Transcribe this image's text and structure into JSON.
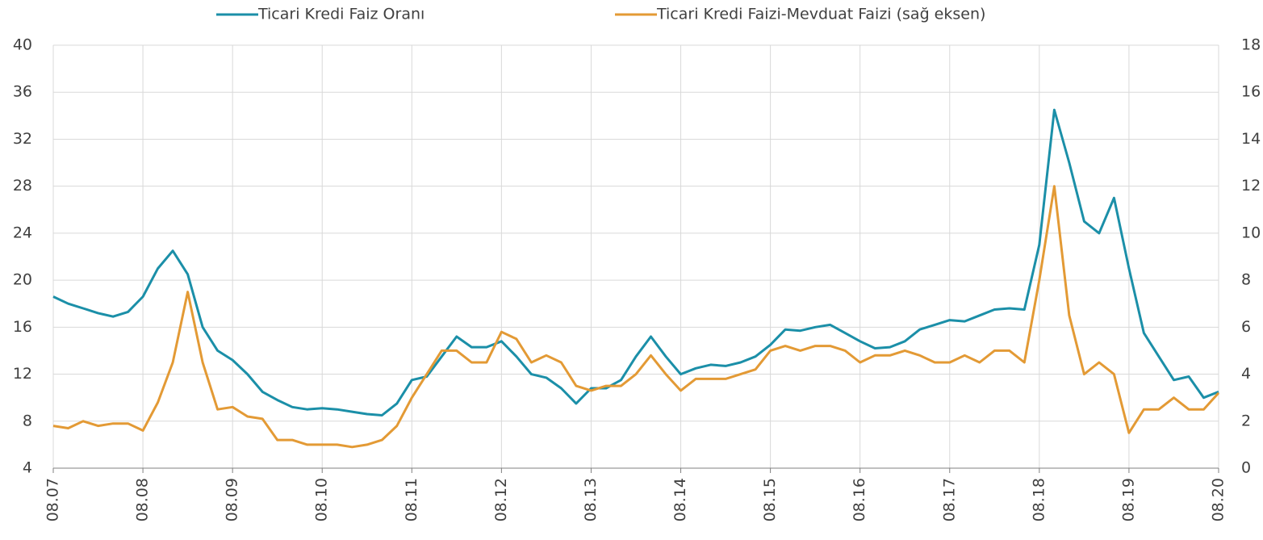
{
  "chart_data": {
    "type": "line",
    "categories": [
      "08.07",
      null,
      null,
      null,
      null,
      null,
      "08.08",
      null,
      null,
      null,
      null,
      null,
      "08.09",
      null,
      null,
      null,
      null,
      null,
      "08.10",
      null,
      null,
      null,
      null,
      null,
      "08.11",
      null,
      null,
      null,
      null,
      null,
      "08.12",
      null,
      null,
      null,
      null,
      null,
      "08.13",
      null,
      null,
      null,
      null,
      null,
      "08.14",
      null,
      null,
      null,
      null,
      null,
      "08.15",
      null,
      null,
      null,
      null,
      null,
      "08.16",
      null,
      null,
      null,
      null,
      null,
      "08.17",
      null,
      null,
      null,
      null,
      null,
      "08.18",
      null,
      null,
      null,
      null,
      null,
      "08.19",
      null,
      null,
      null,
      null,
      null,
      "08.20"
    ],
    "series": [
      {
        "name": "Ticari Kredi Faiz Oranı",
        "color": "#1b8fa8",
        "axis": "y",
        "values": [
          18.6,
          18.0,
          17.6,
          17.2,
          16.9,
          17.3,
          18.6,
          21.0,
          22.5,
          20.5,
          16.0,
          14.0,
          13.2,
          12.0,
          10.5,
          9.8,
          9.2,
          9.0,
          9.1,
          9.0,
          8.8,
          8.6,
          8.5,
          9.5,
          11.5,
          11.8,
          13.5,
          15.2,
          14.3,
          14.3,
          14.8,
          13.5,
          12.0,
          11.7,
          10.8,
          9.5,
          10.8,
          10.8,
          11.5,
          13.5,
          15.2,
          13.5,
          12.0,
          12.5,
          12.8,
          12.7,
          13.0,
          13.5,
          14.5,
          15.8,
          15.7,
          16.0,
          16.2,
          15.5,
          14.8,
          14.2,
          14.3,
          14.8,
          15.8,
          16.2,
          16.6,
          16.5,
          17.0,
          17.5,
          17.6,
          17.5,
          23.0,
          34.5,
          30.0,
          25.0,
          24.0,
          27.0,
          21.0,
          15.5,
          13.5,
          11.5,
          11.8,
          10.0,
          10.5
        ]
      },
      {
        "name": "Ticari Kredi Faizi-Mevduat Faizi (sağ eksen)",
        "color": "#e39a35",
        "axis": "y2",
        "values": [
          1.8,
          1.7,
          2.0,
          1.8,
          1.9,
          1.9,
          1.6,
          2.8,
          4.5,
          7.5,
          4.5,
          2.5,
          2.6,
          2.2,
          2.1,
          1.2,
          1.2,
          1.0,
          1.0,
          1.0,
          0.9,
          1.0,
          1.2,
          1.8,
          3.0,
          4.0,
          5.0,
          5.0,
          4.5,
          4.5,
          5.8,
          5.5,
          4.5,
          4.8,
          4.5,
          3.5,
          3.3,
          3.5,
          3.5,
          4.0,
          4.8,
          4.0,
          3.3,
          3.8,
          3.8,
          3.8,
          4.0,
          4.2,
          5.0,
          5.2,
          5.0,
          5.2,
          5.2,
          5.0,
          4.5,
          4.8,
          4.8,
          5.0,
          4.8,
          4.5,
          4.5,
          4.8,
          4.5,
          5.0,
          5.0,
          4.5,
          8.0,
          12.0,
          6.5,
          4.0,
          4.5,
          4.0,
          1.5,
          2.5,
          2.5,
          3.0,
          2.5,
          2.5,
          3.2
        ]
      }
    ],
    "ylim": [
      4,
      40
    ],
    "yticks": [
      4,
      8,
      12,
      16,
      20,
      24,
      28,
      32,
      36,
      40
    ],
    "y2lim": [
      0,
      18
    ],
    "y2ticks": [
      0,
      2,
      4,
      6,
      8,
      10,
      12,
      14,
      16,
      18
    ],
    "grid": true,
    "legend": "top"
  }
}
